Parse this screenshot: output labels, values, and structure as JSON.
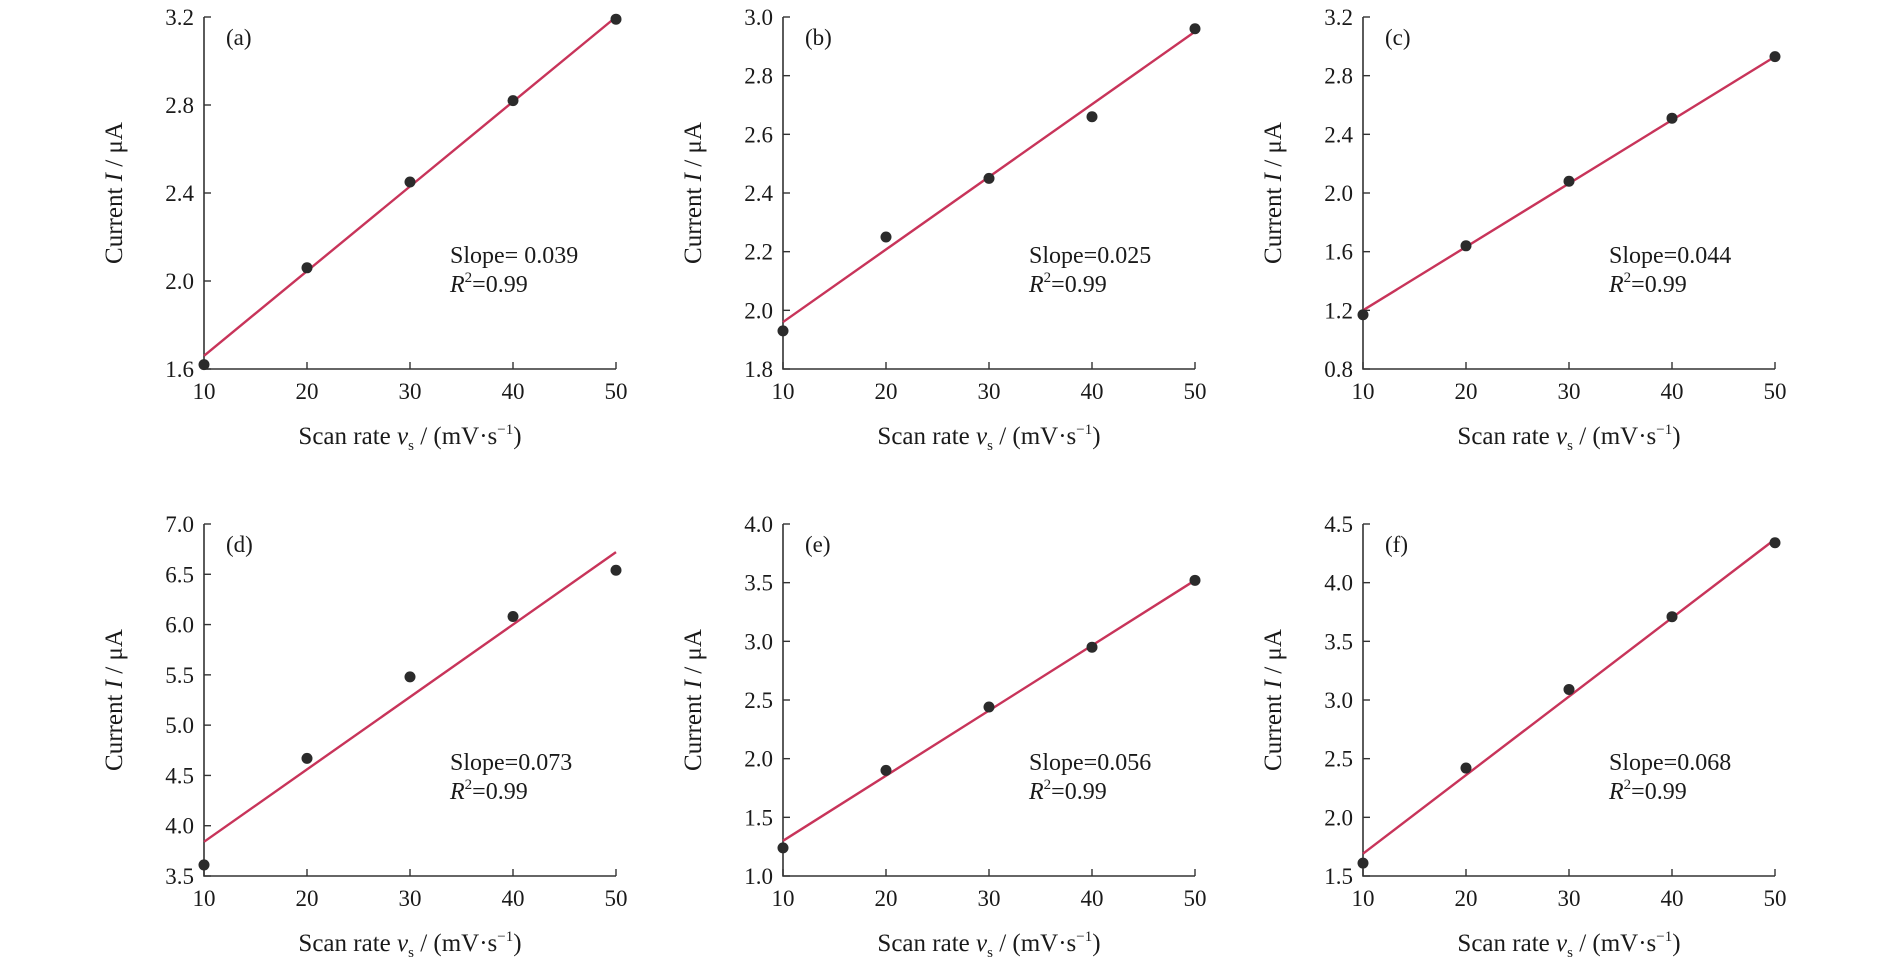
{
  "chart_data": [
    {
      "type": "scatter",
      "panel_label": "(a)",
      "xlabel": "Scan rate",
      "xlabel_symbol": "v",
      "xlabel_subscript": "s",
      "xlabel_unit": "/ (mV·s",
      "xlabel_unit_exp": "−1",
      "xlabel_unit_close": ")",
      "ylabel": "Current",
      "ylabel_symbol": "I",
      "ylabel_unit": "/ μA",
      "xlim": [
        10,
        50
      ],
      "ylim": [
        1.6,
        3.2
      ],
      "xticks": [
        "10",
        "20",
        "30",
        "40",
        "50"
      ],
      "yticks": [
        "1.6",
        "2.0",
        "2.4",
        "2.8",
        "3.2"
      ],
      "x": [
        10,
        20,
        30,
        40,
        50
      ],
      "y": [
        1.62,
        2.06,
        2.45,
        2.82,
        3.19
      ],
      "fit": {
        "x": [
          10,
          50
        ],
        "y": [
          1.66,
          3.2
        ]
      },
      "slope_text": "Slope= 0.039",
      "r2_symbol": "R",
      "r2_exp": "2",
      "r2_value": "=0.99",
      "marker_color": "#2b2b2b",
      "fit_color": "#c8345a"
    },
    {
      "type": "scatter",
      "panel_label": "(b)",
      "xlabel": "Scan rate",
      "xlabel_symbol": "v",
      "xlabel_subscript": "s",
      "xlabel_unit": "/ (mV·s",
      "xlabel_unit_exp": "−1",
      "xlabel_unit_close": ")",
      "ylabel": "Current",
      "ylabel_symbol": "I",
      "ylabel_unit": "/ μA",
      "xlim": [
        10,
        50
      ],
      "ylim": [
        1.8,
        3.0
      ],
      "xticks": [
        "10",
        "20",
        "30",
        "40",
        "50"
      ],
      "yticks": [
        "1.8",
        "2.0",
        "2.2",
        "2.4",
        "2.6",
        "2.8",
        "3.0"
      ],
      "x": [
        10,
        20,
        30,
        40,
        50
      ],
      "y": [
        1.93,
        2.25,
        2.45,
        2.66,
        2.96
      ],
      "fit": {
        "x": [
          10,
          50
        ],
        "y": [
          1.96,
          2.95
        ]
      },
      "slope_text": "Slope=0.025",
      "r2_symbol": "R",
      "r2_exp": "2",
      "r2_value": "=0.99",
      "marker_color": "#2b2b2b",
      "fit_color": "#c8345a"
    },
    {
      "type": "scatter",
      "panel_label": "(c)",
      "xlabel": "Scan rate",
      "xlabel_symbol": "v",
      "xlabel_subscript": "s",
      "xlabel_unit": "/ (mV·s",
      "xlabel_unit_exp": "−1",
      "xlabel_unit_close": ")",
      "ylabel": "Current",
      "ylabel_symbol": "I",
      "ylabel_unit": "/ μA",
      "xlim": [
        10,
        50
      ],
      "ylim": [
        0.8,
        3.2
      ],
      "xticks": [
        "10",
        "20",
        "30",
        "40",
        "50"
      ],
      "yticks": [
        "0.8",
        "1.2",
        "1.6",
        "2.0",
        "2.4",
        "2.8",
        "3.2"
      ],
      "x": [
        10,
        20,
        30,
        40,
        50
      ],
      "y": [
        1.17,
        1.64,
        2.08,
        2.51,
        2.93
      ],
      "fit": {
        "x": [
          10,
          50
        ],
        "y": [
          1.2,
          2.93
        ]
      },
      "slope_text": "Slope=0.044",
      "r2_symbol": "R",
      "r2_exp": "2",
      "r2_value": "=0.99",
      "marker_color": "#2b2b2b",
      "fit_color": "#c8345a"
    },
    {
      "type": "scatter",
      "panel_label": "(d)",
      "xlabel": "Scan rate",
      "xlabel_symbol": "v",
      "xlabel_subscript": "s",
      "xlabel_unit": "/ (mV·s",
      "xlabel_unit_exp": "−1",
      "xlabel_unit_close": ")",
      "ylabel": "Current",
      "ylabel_symbol": "I",
      "ylabel_unit": "/ μA",
      "xlim": [
        10,
        50
      ],
      "ylim": [
        3.5,
        7.0
      ],
      "xticks": [
        "10",
        "20",
        "30",
        "40",
        "50"
      ],
      "yticks": [
        "3.5",
        "4.0",
        "4.5",
        "5.0",
        "5.5",
        "6.0",
        "6.5",
        "7.0"
      ],
      "x": [
        10,
        20,
        30,
        40,
        50
      ],
      "y": [
        3.61,
        4.67,
        5.48,
        6.08,
        6.54
      ],
      "fit": {
        "x": [
          10,
          50
        ],
        "y": [
          3.84,
          6.72
        ]
      },
      "slope_text": "Slope=0.073",
      "r2_symbol": "R",
      "r2_exp": "2",
      "r2_value": "=0.99",
      "marker_color": "#2b2b2b",
      "fit_color": "#c8345a"
    },
    {
      "type": "scatter",
      "panel_label": "(e)",
      "xlabel": "Scan rate",
      "xlabel_symbol": "v",
      "xlabel_subscript": "s",
      "xlabel_unit": "/ (mV·s",
      "xlabel_unit_exp": "−1",
      "xlabel_unit_close": ")",
      "ylabel": "Current",
      "ylabel_symbol": "I",
      "ylabel_unit": "/ μA",
      "xlim": [
        10,
        50
      ],
      "ylim": [
        1.0,
        4.0
      ],
      "xticks": [
        "10",
        "20",
        "30",
        "40",
        "50"
      ],
      "yticks": [
        "1.0",
        "1.5",
        "2.0",
        "2.5",
        "3.0",
        "3.5",
        "4.0"
      ],
      "x": [
        10,
        20,
        30,
        40,
        50
      ],
      "y": [
        1.24,
        1.9,
        2.44,
        2.95,
        3.52
      ],
      "fit": {
        "x": [
          10,
          50
        ],
        "y": [
          1.3,
          3.52
        ]
      },
      "slope_text": "Slope=0.056",
      "r2_symbol": "R",
      "r2_exp": "2",
      "r2_value": "=0.99",
      "marker_color": "#2b2b2b",
      "fit_color": "#c8345a"
    },
    {
      "type": "scatter",
      "panel_label": "(f)",
      "xlabel": "Scan rate",
      "xlabel_symbol": "v",
      "xlabel_subscript": "s",
      "xlabel_unit": "/ (mV·s",
      "xlabel_unit_exp": "−1",
      "xlabel_unit_close": ")",
      "ylabel": "Current",
      "ylabel_symbol": "I",
      "ylabel_unit": "/ μA",
      "xlim": [
        10,
        50
      ],
      "ylim": [
        1.5,
        4.5
      ],
      "xticks": [
        "10",
        "20",
        "30",
        "40",
        "50"
      ],
      "yticks": [
        "1.5",
        "2.0",
        "2.5",
        "3.0",
        "3.5",
        "4.0",
        "4.5"
      ],
      "x": [
        10,
        20,
        30,
        40,
        50
      ],
      "y": [
        1.61,
        2.42,
        3.09,
        3.71,
        4.34
      ],
      "fit": {
        "x": [
          10,
          50
        ],
        "y": [
          1.69,
          4.37
        ]
      },
      "slope_text": "Slope=0.068",
      "r2_symbol": "R",
      "r2_exp": "2",
      "r2_value": "=0.99",
      "marker_color": "#2b2b2b",
      "fit_color": "#c8345a"
    }
  ]
}
